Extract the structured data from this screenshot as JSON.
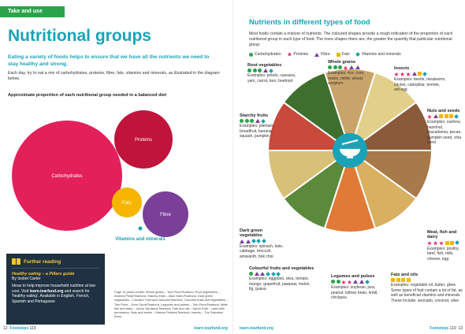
{
  "left_page": {
    "section_tab": "Take and use",
    "title": "Nutritional groups",
    "lede": "Eating a variety of foods helps to ensure that we have all the nutrients we need to stay healthy and strong.",
    "body": "Each day, try to eat a mix of carbohydrates, proteins, fibre, fats, vitamins and minerals, as illustrated in the diagram below.",
    "diagram_title": "Approximate proportion of each nutritional group needed in a balanced diet",
    "bubbles": [
      {
        "label": "Carbohydrates",
        "color": "#e4205b"
      },
      {
        "label": "Proteins",
        "color": "#c0143c"
      },
      {
        "label": "Fats",
        "color": "#f7b500"
      },
      {
        "label": "Fibre",
        "color": "#7a3f98"
      },
      {
        "label": "Vitamins and minerals",
        "color": "#19a0b0"
      }
    ],
    "further_reading": {
      "heading": "Further reading",
      "book": "Healthy eating – a Pillars guide",
      "author": "By Isobel Carter",
      "text_before": "Ideas to help improve household nutrition at low cost. Visit ",
      "text_link": "learn.tearfund.org",
      "text_after": " and search for 'healthy eating'. Available in English, French, Spanish and Portuguese"
    },
    "credits": "Page 13 photo credits: Whole grains – Tom Price/Tearfund, Root vegetables – Andrew Philip/Tearfund, Starchy fruits – Alice Keen/Tearfund, Dark green vegetables – Caroline Trutmann Marconi/Tearfund, Colourful fruits and vegetables – Tom Price – Ecce Opus/Tearfund, Legumes and pulses – Tom Price/Tearfund, Meat, fish and dairy – Janos Yamaspo/Tearfund, Fats and oils – Aaron Koth – used with permission, Nuts and seeds – Marcus Perkins/Tearfund, Insects – The Salvation Army",
    "footer_page": "12",
    "footer_mag": "Footsteps",
    "footer_issue": "119",
    "footer_url": "learn.tearfund.org"
  },
  "right_page": {
    "title": "Nutrients in different types of food",
    "intro": "Most foods contain a mixture of nutrients. The coloured shapes provide a rough indication of the proportion of each nutritional group in each type of food. The more shapes there are, the greater the quantity that particular nutritional group.",
    "legend": [
      {
        "shape": "circle",
        "label": "Carbohydrates",
        "color": "#2aa44a"
      },
      {
        "shape": "star",
        "label": "Proteins",
        "color": "#e4205b"
      },
      {
        "shape": "tri",
        "label": "Fibre",
        "color": "#7a3f98"
      },
      {
        "shape": "square",
        "label": "Fats",
        "color": "#f7b500"
      },
      {
        "shape": "diamond",
        "label": "Vitamins and minerals",
        "color": "#19a0b0"
      }
    ],
    "foods": [
      {
        "key": "root",
        "name": "Root vegetables",
        "icons": [
          "circle",
          "circle",
          "circle",
          "tri",
          "diamond"
        ],
        "examples": "Examples: potato, cassava, yam, carrot, taro, beetroot"
      },
      {
        "key": "grains",
        "name": "Whole grains",
        "icons": [
          "circle",
          "circle",
          "circle",
          "star",
          "tri",
          "tri"
        ],
        "examples": "Examples: rice, corn, maize, millet, wheat, sorghum"
      },
      {
        "key": "insects",
        "name": "Insects",
        "icons": [
          "star",
          "star",
          "star",
          "tri",
          "square",
          "diamond"
        ],
        "examples": "Examples: beetle, mealworm, cricket, caterpillar, termite, ant egg"
      },
      {
        "key": "nuts",
        "name": "Nuts and seeds",
        "icons": [
          "star",
          "tri",
          "square",
          "square",
          "square",
          "diamond"
        ],
        "examples": "Examples: cashew, hazelnut, macadamia, pecan, pumpkin seed, chia seed"
      },
      {
        "key": "starchy",
        "name": "Starchy fruits",
        "icons": [
          "circle",
          "circle",
          "circle",
          "tri",
          "diamond"
        ],
        "examples": "Examples: plantain, breadfruit, banana, squash, pumpkin"
      },
      {
        "key": "darkgreen",
        "name": "Dark green vegetables",
        "icons": [
          "tri",
          "tri",
          "diamond",
          "diamond",
          "diamond"
        ],
        "examples": "Examples: spinach, kale, cabbage, broccoli, amaranth, bok choi"
      },
      {
        "key": "meat",
        "name": "Meat, fish and dairy",
        "icons": [
          "star",
          "star",
          "star",
          "square",
          "square",
          "diamond"
        ],
        "examples": "Examples: poultry, beef, fish, milk, cheese, egg"
      },
      {
        "key": "fats",
        "name": "Fats and oils",
        "icons": [
          "square",
          "square",
          "square",
          "square"
        ],
        "examples": "Examples: vegetable oil, butter, ghee. Some types of fruit contain a lot of fat, as well as beneficial vitamins and minerals. These include: avocado, coconut, olive"
      },
      {
        "key": "colourful",
        "name": "Colourful fruits and vegetables",
        "icons": [
          "circle",
          "tri",
          "tri",
          "diamond",
          "diamond",
          "diamond"
        ],
        "examples": "Examples: eggplant, okra, tomato, mango, grapefruit, pawpaw, melon, fig, guava"
      },
      {
        "key": "legumes",
        "name": "Legumes and pulses",
        "icons": [
          "circle",
          "circle",
          "star",
          "star",
          "tri",
          "tri",
          "diamond"
        ],
        "examples": "Examples: soybean, pea, peanut, kidney bean, lentil, chickpea"
      }
    ],
    "footer_url": "learn.tearfund.org",
    "footer_mag": "Footsteps",
    "footer_issue": "119",
    "footer_page": "13"
  }
}
